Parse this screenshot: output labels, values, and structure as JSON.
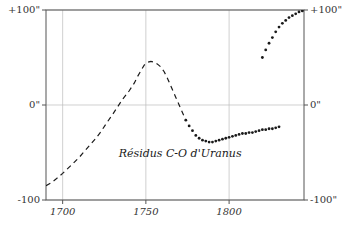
{
  "chart_data": {
    "type": "line",
    "title": "Résidus C-O d'Uranus",
    "xlim": [
      1690,
      1845
    ],
    "xticks": [
      1700,
      1750,
      1800
    ],
    "ylim": [
      -100,
      100
    ],
    "yticks": [
      {
        "value": 100,
        "label": "+100\""
      },
      {
        "value": 0,
        "label": "0\""
      },
      {
        "value": -100,
        "label": "-100"
      }
    ],
    "y2lim": [
      -100,
      100
    ],
    "y2ticks": [
      {
        "value": 100,
        "label": "+100\""
      },
      {
        "value": 0,
        "label": "0\""
      },
      {
        "value": -100,
        "label": "-100\""
      }
    ],
    "grid": true,
    "series": [
      {
        "color": "#1a1a1a",
        "line_style": "dashed",
        "x": [
          1690,
          1693,
          1696,
          1700,
          1703,
          1706,
          1710,
          1713,
          1716,
          1720,
          1723,
          1726,
          1730,
          1733,
          1736,
          1740,
          1743,
          1745,
          1747,
          1749,
          1751,
          1753,
          1755,
          1757,
          1759,
          1761,
          1763,
          1765,
          1768,
          1771,
          1774
        ],
        "values": [
          -85,
          -82,
          -78,
          -72,
          -67,
          -62,
          -55,
          -49,
          -43,
          -35,
          -28,
          -20,
          -10,
          -2,
          6,
          15,
          23,
          30,
          36,
          42,
          45,
          46,
          45,
          43,
          40,
          35,
          28,
          20,
          8,
          -4,
          -16
        ]
      },
      {
        "color": "#1a1a1a",
        "line_style": "none",
        "marker": "dot",
        "x": [
          1774,
          1776,
          1778,
          1780,
          1782,
          1784,
          1786,
          1788,
          1790,
          1792,
          1794,
          1796,
          1798,
          1800,
          1802,
          1804,
          1806,
          1808,
          1810,
          1812,
          1814,
          1816,
          1818,
          1820,
          1822,
          1824,
          1826,
          1828,
          1830
        ],
        "values": [
          -16,
          -22,
          -27,
          -32,
          -35,
          -37,
          -38,
          -39,
          -39,
          -38,
          -37,
          -36,
          -35,
          -34,
          -33,
          -32,
          -31,
          -30,
          -30,
          -29,
          -29,
          -28,
          -27,
          -26,
          -26,
          -25,
          -25,
          -24,
          -23
        ]
      },
      {
        "color": "#1a1a1a",
        "line_style": "none",
        "marker": "dot",
        "x": [
          1820,
          1822,
          1824,
          1826,
          1828,
          1830,
          1832,
          1834,
          1836,
          1838,
          1840,
          1842,
          1844
        ],
        "values": [
          50,
          58,
          65,
          71,
          77,
          82,
          86,
          89,
          92,
          94,
          96,
          98,
          99
        ]
      }
    ]
  }
}
